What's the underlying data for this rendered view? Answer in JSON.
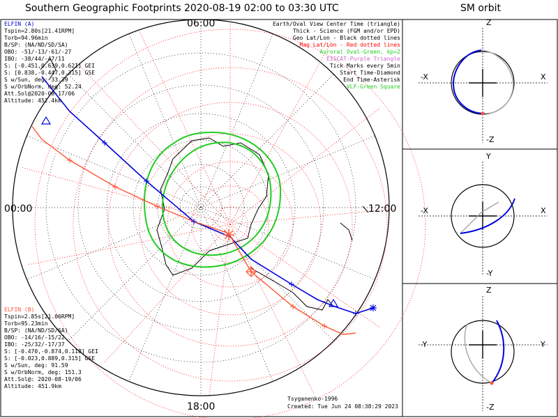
{
  "header": {
    "title": "Southern Geographic Footprints 2020-08-19 02:00 to 03:30 UTC",
    "orbit_title": "SM orbit"
  },
  "clock_labels": {
    "top": "06:00",
    "bottom": "18:00",
    "left": "00:00",
    "right": "12:00"
  },
  "legend": [
    {
      "text": "Earth/Oval View Center Time (triangle)",
      "color": "#000000"
    },
    {
      "text": "Thick - Science (FGM and/or EPD)",
      "color": "#000000"
    },
    {
      "text": "Geo Lat/Lon - Black dotted lines",
      "color": "#000000"
    },
    {
      "text": "Mag Lat/Lon - Red dotted lines",
      "color": "#ff0000"
    },
    {
      "text": "Auroral Oval-Green, kp=2",
      "color": "#22cc22"
    },
    {
      "text": "EISCAT-Purple Triangle",
      "color": "#cc66cc"
    },
    {
      "text": "Tick Marks every 5min",
      "color": "#000000"
    },
    {
      "text": "Start Time-Diamond",
      "color": "#000000"
    },
    {
      "text": "End Time-Asterisk",
      "color": "#000000"
    },
    {
      "text": "VLF-Green Square",
      "color": "#22cc22"
    }
  ],
  "elfin_a": {
    "name": "ELFIN (A)",
    "lines": [
      "Tspin=2.80s[21.41RPM]",
      "Torb=94.96min",
      "B/SP: (NA/ND/SD/SA)",
      "OBO: -51/-13/-61/-27",
      "IBO: -38/44/-47/11",
      "S: [-0.451,0.639,0.621] GEI",
      "S: [0.838,-0.447,0.315] GSE",
      "S w/Sun, deg: 33.39",
      "S w/OrbNorm, deg: 52.24",
      "Att.Sol@2020-08-17/06",
      "Altitude: 452.4km"
    ]
  },
  "elfin_b": {
    "name": "ELFIN (B)",
    "lines": [
      "Tspin=2.85s[21.06RPM]",
      "Torb=95.23min",
      "B/SP: (NA/ND/SD/SA)",
      "OBO: -14/16/-15/22",
      "IBO: -25/32/-17/37",
      "S: [-0.470,-0.874,0.118] GEI",
      "S: [-0.023,0.889,0.315] GSE",
      "S w/Sun, deg: 91.59",
      "S w/OrbNorm, deg: 151.3",
      "Att.Sol@: 2020-08-19/06",
      "Altitude: 451.9km"
    ]
  },
  "footer": {
    "model": "Tsyganenko-1996",
    "created": "Created: Tue Jun 24 08:38:29 2023"
  },
  "orbit_panels": [
    {
      "top": "Z",
      "bottom": "-Z",
      "left": "-X",
      "right": "X"
    },
    {
      "top": "Y",
      "bottom": "-Y",
      "left": "-X",
      "right": "X"
    },
    {
      "top": "Z",
      "bottom": "-Z",
      "left": "-Y",
      "right": "Y"
    }
  ],
  "colors": {
    "elfin_a": "#0000dd",
    "elfin_b": "#ff5533",
    "oval": "#22cc22",
    "mag_grid": "#ff0000",
    "geo_grid": "#000000"
  }
}
